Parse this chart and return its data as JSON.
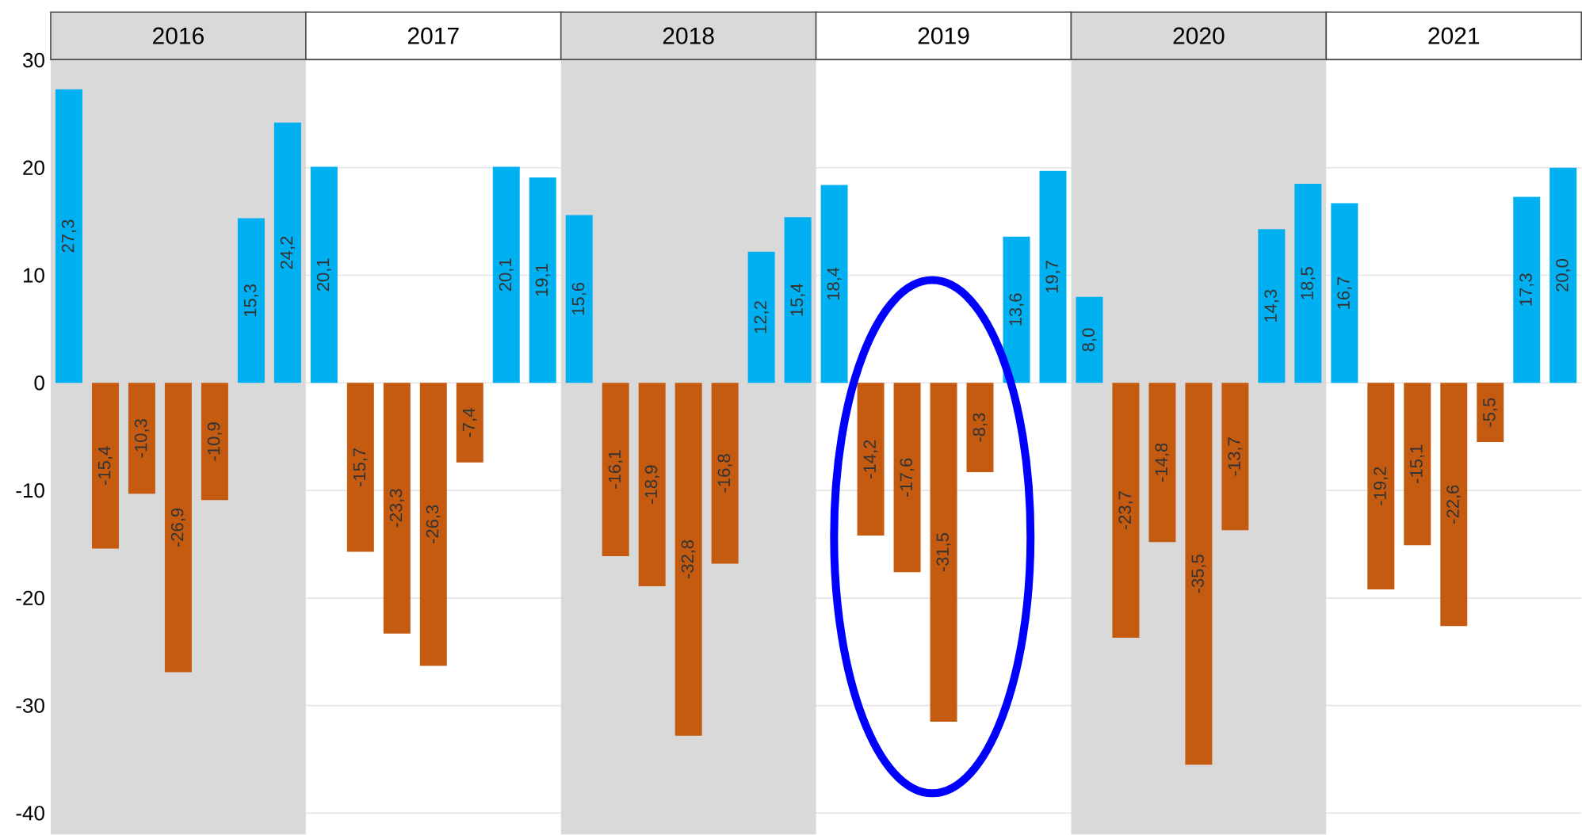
{
  "chart_data": {
    "type": "bar",
    "categories": [
      null,
      null,
      null,
      null,
      null,
      null,
      null,
      null,
      null,
      null,
      null,
      null,
      null,
      null,
      null,
      null,
      null,
      null,
      null,
      null,
      null,
      null,
      null,
      null,
      null,
      null,
      null,
      null,
      null,
      null,
      null,
      null,
      null,
      null,
      null,
      null,
      null,
      null,
      null,
      null,
      null,
      null
    ],
    "values": [
      27.3,
      -15.4,
      -10.3,
      -26.9,
      -10.9,
      15.3,
      24.2,
      20.1,
      -15.7,
      -23.3,
      -26.3,
      -7.4,
      20.1,
      19.1,
      15.6,
      -16.1,
      -18.9,
      -32.8,
      -16.8,
      12.2,
      15.4,
      18.4,
      -14.2,
      -17.6,
      -31.5,
      -8.3,
      13.6,
      19.7,
      8.0,
      -23.7,
      -14.8,
      -35.5,
      -13.7,
      14.3,
      18.5,
      16.7,
      -19.2,
      -15.1,
      -22.6,
      -5.5,
      17.3,
      20.0
    ],
    "colors": [
      "#00b0f0",
      "#c55a11",
      "#c55a11",
      "#c55a11",
      "#c55a11",
      "#00b0f0",
      "#00b0f0",
      "#00b0f0",
      "#c55a11",
      "#c55a11",
      "#c55a11",
      "#c55a11",
      "#00b0f0",
      "#00b0f0",
      "#00b0f0",
      "#c55a11",
      "#c55a11",
      "#c55a11",
      "#c55a11",
      "#00b0f0",
      "#00b0f0",
      "#00b0f0",
      "#c55a11",
      "#c55a11",
      "#c55a11",
      "#c55a11",
      "#00b0f0",
      "#00b0f0",
      "#00b0f0",
      "#c55a11",
      "#c55a11",
      "#c55a11",
      "#c55a11",
      "#00b0f0",
      "#00b0f0",
      "#00b0f0",
      "#c55a11",
      "#c55a11",
      "#c55a11",
      "#c55a11",
      "#00b0f0",
      "#00b0f0"
    ],
    "value_labels": [
      "27,3",
      "-15,4",
      "-10,3",
      "-26,9",
      "-10,9",
      "15,3",
      "24,2",
      "20,1",
      "-15,7",
      "-23,3",
      "-26,3",
      "-7,4",
      "20,1",
      "19,1",
      "15,6",
      "-16,1",
      "-18,9",
      "-32,8",
      "-16,8",
      "12,2",
      "15,4",
      "18,4",
      "-14,2",
      "-17,6",
      "-31,5",
      "-8,3",
      "13,6",
      "19,7",
      "8,0",
      "-23,7",
      "-14,8",
      "-35,5",
      "-13,7",
      "14,3",
      "18,5",
      "16,7",
      "-19,2",
      "-15,1",
      "-22,6",
      "-5,5",
      "17,3",
      "20,0"
    ],
    "annotations": [
      "2016",
      "2017",
      "2018",
      "2019",
      "2020",
      "2021"
    ],
    "ylim": [
      -42,
      30
    ],
    "yticks": [
      -40,
      -30,
      -20,
      -10,
      0,
      10,
      20,
      30
    ],
    "grid": "y",
    "tick_labels": "y"
  }
}
